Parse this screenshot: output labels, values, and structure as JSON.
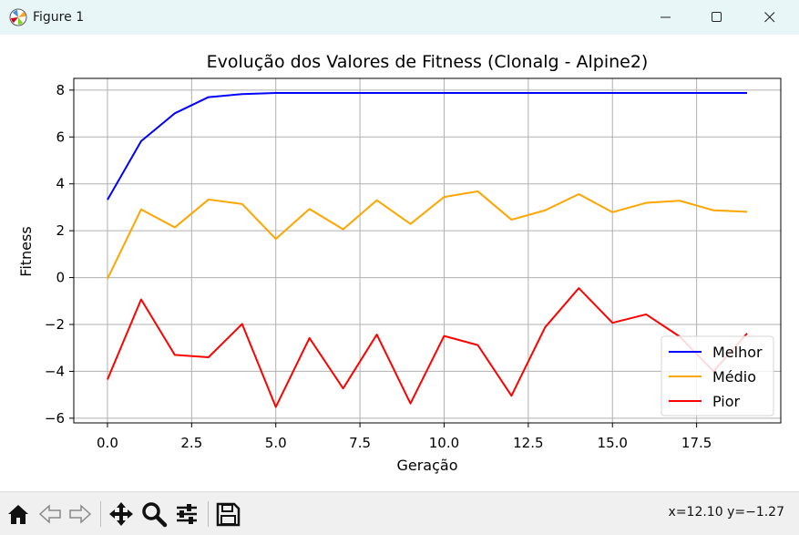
{
  "window": {
    "title": "Figure 1"
  },
  "toolbar": {
    "coords": "x=12.10 y=−1.27",
    "buttons": [
      "home-icon",
      "back-icon",
      "forward-icon",
      "pan-icon",
      "zoom-icon",
      "configure-subplots-icon",
      "save-icon"
    ]
  },
  "chart_data": {
    "type": "line",
    "title": "Evolução dos Valores de Fitness (Clonalg - Alpine2)",
    "xlabel": "Geração",
    "ylabel": "Fitness",
    "x": [
      0,
      1,
      2,
      3,
      4,
      5,
      6,
      7,
      8,
      9,
      10,
      11,
      12,
      13,
      14,
      15,
      16,
      17,
      18,
      19
    ],
    "xlim": [
      -1.0,
      20.0
    ],
    "ylim": [
      -6.2,
      8.5
    ],
    "xticks": [
      0,
      2.5,
      5,
      7.5,
      10,
      12.5,
      15,
      17.5
    ],
    "xtick_labels": [
      "0.0",
      "2.5",
      "5.0",
      "7.5",
      "10.0",
      "12.5",
      "15.0",
      "17.5"
    ],
    "yticks": [
      -6,
      -4,
      -2,
      0,
      2,
      4,
      6,
      8
    ],
    "ytick_labels": [
      "−6",
      "−4",
      "−2",
      "0",
      "2",
      "4",
      "6",
      "8"
    ],
    "grid": true,
    "legend_position": "lower-right",
    "series": [
      {
        "name": "Melhor",
        "color": "#0000ff",
        "values": [
          3.32,
          5.82,
          7.01,
          7.7,
          7.83,
          7.88,
          7.88,
          7.88,
          7.88,
          7.88,
          7.88,
          7.88,
          7.88,
          7.88,
          7.88,
          7.88,
          7.88,
          7.88,
          7.88,
          7.88
        ]
      },
      {
        "name": "Médio",
        "color": "#ffa500",
        "values": [
          -0.05,
          2.91,
          2.14,
          3.33,
          3.14,
          1.65,
          2.93,
          2.06,
          3.3,
          2.29,
          3.44,
          3.68,
          2.47,
          2.87,
          3.56,
          2.79,
          3.19,
          3.28,
          2.87,
          2.81
        ]
      },
      {
        "name": "Pior",
        "color": "#ff0000",
        "values": [
          -4.35,
          -0.93,
          -3.3,
          -3.4,
          -1.98,
          -5.52,
          -2.58,
          -4.73,
          -2.43,
          -5.37,
          -2.49,
          -2.88,
          -5.04,
          -2.12,
          -0.45,
          -1.93,
          -1.57,
          -2.52,
          -4.0,
          -2.38
        ]
      }
    ]
  }
}
